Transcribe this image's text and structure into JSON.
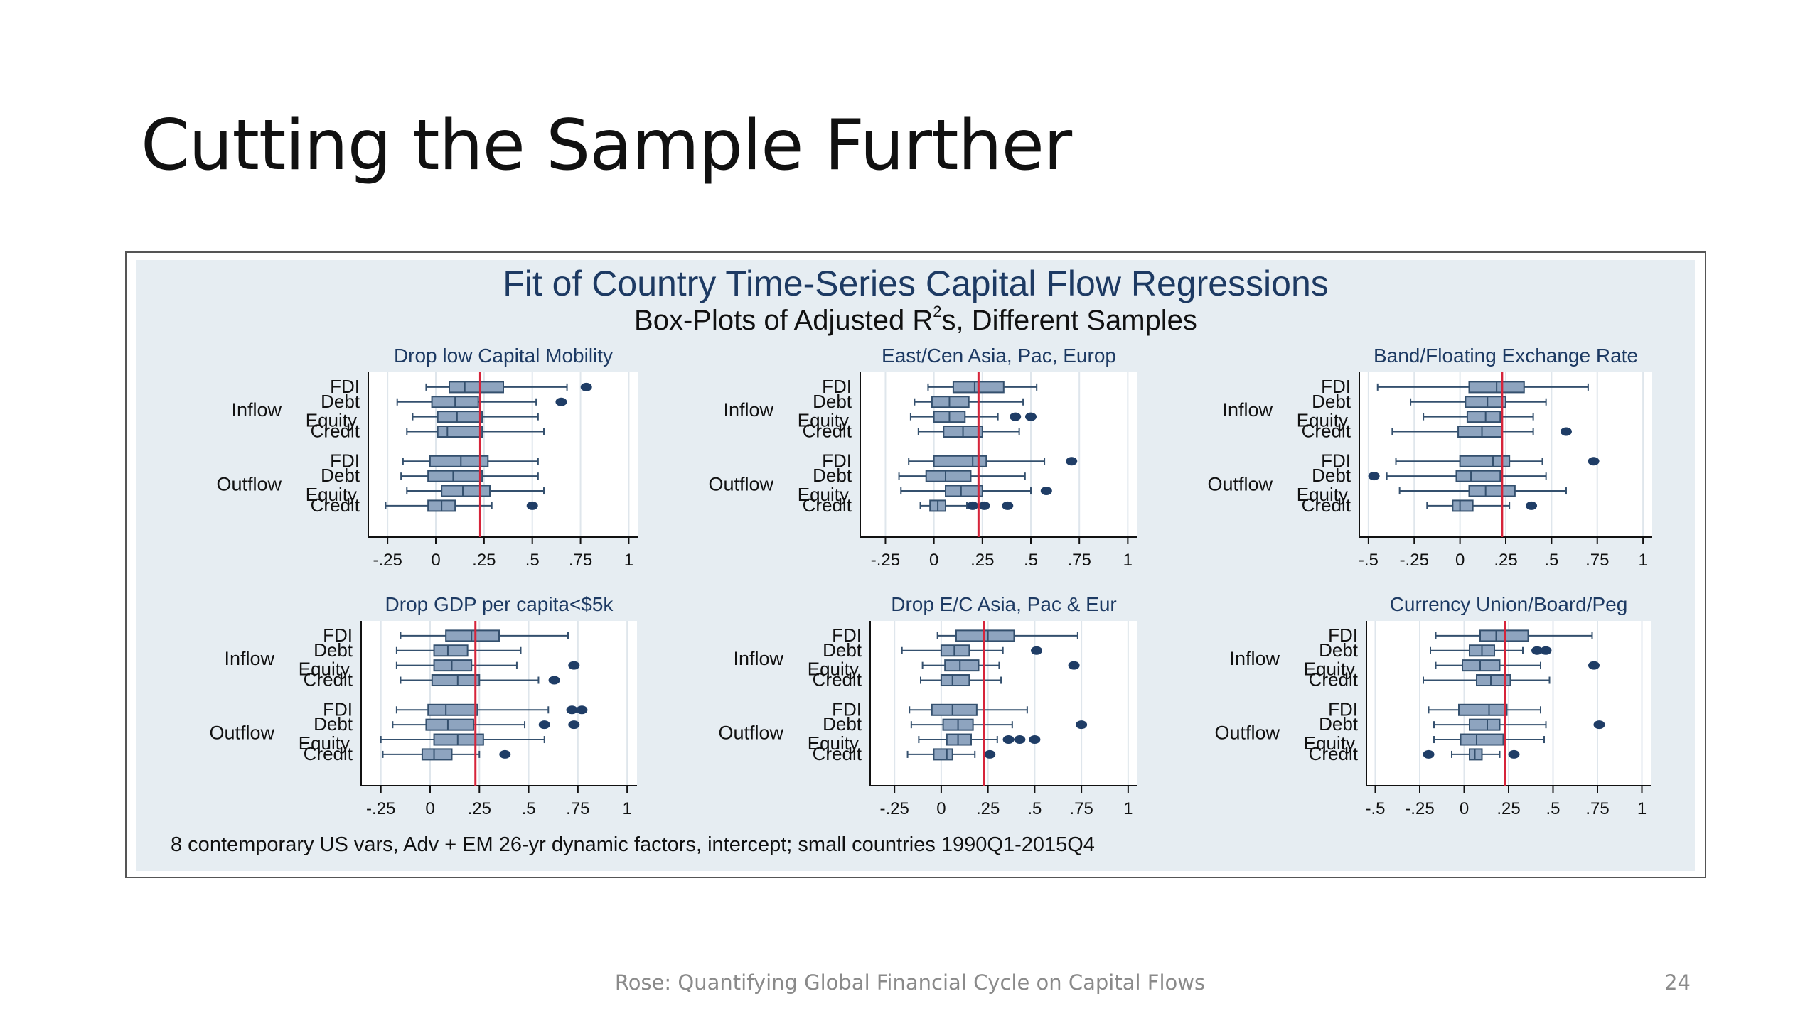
{
  "slide": {
    "title": "Cutting the Sample Further",
    "footer": "Rose: Quantifying Global Financial Cycle on Capital Flows",
    "page_number": "24"
  },
  "colors": {
    "box_fill": "#8ea4bf",
    "box_stroke": "#34506e",
    "outlier": "#1f3d66",
    "ref_line": "#d6243a",
    "panel_bg": "#e6edf2",
    "title_blue": "#1d3a63"
  },
  "chart_data": {
    "type": "boxplot",
    "title": "Fit of Country Time-Series Capital Flow Regressions",
    "subtitle_pre": "Box-Plots of Adjusted R",
    "subtitle_sup": "2",
    "subtitle_post": "s, Different Samples",
    "note": "8 contemporary US vars, Adv + EM 26-yr dynamic factors, intercept; small countries 1990Q1-2015Q4",
    "groups": [
      "Inflow",
      "Outflow"
    ],
    "categories": [
      "FDI",
      "Debt",
      "Equity",
      "Credit"
    ],
    "reference_line": 0.23,
    "panels": [
      {
        "title": "Drop low Capital Mobility",
        "xlim": [
          -0.35,
          1.05
        ],
        "ticks": [
          -0.25,
          0,
          0.25,
          0.5,
          0.75,
          1
        ],
        "tick_labels": [
          "-.25",
          "0",
          ".25",
          ".5",
          ".75",
          "1"
        ],
        "rows": [
          {
            "min": -0.05,
            "q1": 0.07,
            "med": 0.15,
            "q3": 0.35,
            "max": 0.68,
            "outliers": [
              0.78
            ]
          },
          {
            "min": -0.2,
            "q1": -0.02,
            "med": 0.1,
            "q3": 0.22,
            "max": 0.52,
            "outliers": [
              0.65
            ]
          },
          {
            "min": -0.12,
            "q1": 0.01,
            "med": 0.11,
            "q3": 0.24,
            "max": 0.53,
            "outliers": []
          },
          {
            "min": -0.15,
            "q1": 0.01,
            "med": 0.06,
            "q3": 0.24,
            "max": 0.56,
            "outliers": []
          },
          {
            "min": -0.17,
            "q1": -0.03,
            "med": 0.13,
            "q3": 0.27,
            "max": 0.53,
            "outliers": []
          },
          {
            "min": -0.18,
            "q1": -0.04,
            "med": 0.09,
            "q3": 0.24,
            "max": 0.53,
            "outliers": []
          },
          {
            "min": -0.15,
            "q1": 0.03,
            "med": 0.14,
            "q3": 0.28,
            "max": 0.56,
            "outliers": []
          },
          {
            "min": -0.26,
            "q1": -0.04,
            "med": 0.03,
            "q3": 0.1,
            "max": 0.29,
            "outliers": [
              0.5
            ]
          }
        ]
      },
      {
        "title": "East/Cen Asia, Pac, Europ",
        "xlim": [
          -0.38,
          1.05
        ],
        "ticks": [
          -0.25,
          0,
          0.25,
          0.5,
          0.75,
          1
        ],
        "tick_labels": [
          "-.25",
          "0",
          ".25",
          ".5",
          ".75",
          "1"
        ],
        "rows": [
          {
            "min": -0.03,
            "q1": 0.1,
            "med": 0.21,
            "q3": 0.36,
            "max": 0.53,
            "outliers": []
          },
          {
            "min": -0.1,
            "q1": -0.01,
            "med": 0.08,
            "q3": 0.18,
            "max": 0.46,
            "outliers": []
          },
          {
            "min": -0.12,
            "q1": 0.0,
            "med": 0.08,
            "q3": 0.16,
            "max": 0.33,
            "outliers": [
              0.42,
              0.5
            ]
          },
          {
            "min": -0.08,
            "q1": 0.05,
            "med": 0.15,
            "q3": 0.25,
            "max": 0.44,
            "outliers": []
          },
          {
            "min": -0.13,
            "q1": 0.0,
            "med": 0.2,
            "q3": 0.27,
            "max": 0.57,
            "outliers": [
              0.71
            ]
          },
          {
            "min": -0.18,
            "q1": -0.04,
            "med": 0.06,
            "q3": 0.19,
            "max": 0.47,
            "outliers": []
          },
          {
            "min": -0.17,
            "q1": 0.06,
            "med": 0.14,
            "q3": 0.25,
            "max": 0.5,
            "outliers": [
              0.58
            ]
          },
          {
            "min": -0.07,
            "q1": -0.02,
            "med": 0.02,
            "q3": 0.06,
            "max": 0.17,
            "outliers": [
              0.2,
              0.26,
              0.38
            ]
          }
        ]
      },
      {
        "title": "Band/Floating Exchange Rate",
        "xlim": [
          -0.55,
          1.05
        ],
        "ticks": [
          -0.5,
          -0.25,
          0,
          0.25,
          0.5,
          0.75,
          1
        ],
        "tick_labels": [
          "-.5",
          "-.25",
          "0",
          ".25",
          ".5",
          ".75",
          "1"
        ],
        "rows": [
          {
            "min": -0.45,
            "q1": 0.05,
            "med": 0.2,
            "q3": 0.35,
            "max": 0.7,
            "outliers": []
          },
          {
            "min": -0.27,
            "q1": 0.03,
            "med": 0.15,
            "q3": 0.25,
            "max": 0.47,
            "outliers": []
          },
          {
            "min": -0.2,
            "q1": 0.04,
            "med": 0.14,
            "q3": 0.22,
            "max": 0.4,
            "outliers": []
          },
          {
            "min": -0.37,
            "q1": -0.01,
            "med": 0.12,
            "q3": 0.23,
            "max": 0.4,
            "outliers": [
              0.58
            ]
          },
          {
            "min": -0.35,
            "q1": 0.0,
            "med": 0.18,
            "q3": 0.27,
            "max": 0.45,
            "outliers": [
              0.73
            ]
          },
          {
            "min": -0.4,
            "q1": -0.02,
            "med": 0.06,
            "q3": 0.22,
            "max": 0.47,
            "outliers": [
              -0.47
            ]
          },
          {
            "min": -0.33,
            "q1": 0.05,
            "med": 0.14,
            "q3": 0.3,
            "max": 0.58,
            "outliers": []
          },
          {
            "min": -0.18,
            "q1": -0.04,
            "med": 0.0,
            "q3": 0.07,
            "max": 0.27,
            "outliers": [
              0.39
            ]
          }
        ]
      },
      {
        "title": "Drop GDP per capita<$5k",
        "xlim": [
          -0.35,
          1.05
        ],
        "ticks": [
          -0.25,
          0,
          0.25,
          0.5,
          0.75,
          1
        ],
        "tick_labels": [
          "-.25",
          "0",
          ".25",
          ".5",
          ".75",
          "1"
        ],
        "rows": [
          {
            "min": -0.15,
            "q1": 0.08,
            "med": 0.21,
            "q3": 0.35,
            "max": 0.7,
            "outliers": []
          },
          {
            "min": -0.17,
            "q1": 0.02,
            "med": 0.09,
            "q3": 0.19,
            "max": 0.46,
            "outliers": []
          },
          {
            "min": -0.17,
            "q1": 0.02,
            "med": 0.11,
            "q3": 0.21,
            "max": 0.44,
            "outliers": [
              0.73
            ]
          },
          {
            "min": -0.15,
            "q1": 0.01,
            "med": 0.14,
            "q3": 0.25,
            "max": 0.55,
            "outliers": [
              0.63
            ]
          },
          {
            "min": -0.17,
            "q1": -0.01,
            "med": 0.08,
            "q3": 0.24,
            "max": 0.6,
            "outliers": [
              0.72,
              0.77
            ]
          },
          {
            "min": -0.19,
            "q1": -0.02,
            "med": 0.09,
            "q3": 0.22,
            "max": 0.48,
            "outliers": [
              0.58,
              0.73
            ]
          },
          {
            "min": -0.25,
            "q1": 0.02,
            "med": 0.14,
            "q3": 0.27,
            "max": 0.58,
            "outliers": []
          },
          {
            "min": -0.24,
            "q1": -0.04,
            "med": 0.02,
            "q3": 0.11,
            "max": 0.25,
            "outliers": [
              0.38
            ]
          }
        ]
      },
      {
        "title": "Drop E/C Asia, Pac & Eur",
        "xlim": [
          -0.38,
          1.05
        ],
        "ticks": [
          -0.25,
          0,
          0.25,
          0.5,
          0.75,
          1
        ],
        "tick_labels": [
          "-.25",
          "0",
          ".25",
          ".5",
          ".75",
          "1"
        ],
        "rows": [
          {
            "min": -0.02,
            "q1": 0.08,
            "med": 0.25,
            "q3": 0.39,
            "max": 0.73,
            "outliers": []
          },
          {
            "min": -0.21,
            "q1": 0.0,
            "med": 0.07,
            "q3": 0.15,
            "max": 0.33,
            "outliers": [
              0.51
            ]
          },
          {
            "min": -0.1,
            "q1": 0.02,
            "med": 0.1,
            "q3": 0.2,
            "max": 0.31,
            "outliers": [
              0.71
            ]
          },
          {
            "min": -0.11,
            "q1": 0.0,
            "med": 0.06,
            "q3": 0.15,
            "max": 0.32,
            "outliers": []
          },
          {
            "min": -0.17,
            "q1": -0.05,
            "med": 0.06,
            "q3": 0.19,
            "max": 0.46,
            "outliers": []
          },
          {
            "min": -0.16,
            "q1": 0.01,
            "med": 0.09,
            "q3": 0.17,
            "max": 0.38,
            "outliers": [
              0.75
            ]
          },
          {
            "min": -0.12,
            "q1": 0.03,
            "med": 0.09,
            "q3": 0.16,
            "max": 0.3,
            "outliers": [
              0.36,
              0.42,
              0.5
            ]
          },
          {
            "min": -0.18,
            "q1": -0.04,
            "med": 0.03,
            "q3": 0.06,
            "max": 0.18,
            "outliers": [
              0.26
            ]
          }
        ]
      },
      {
        "title": "Currency Union/Board/Peg",
        "xlim": [
          -0.55,
          1.05
        ],
        "ticks": [
          -0.5,
          -0.25,
          0,
          0.25,
          0.5,
          0.75,
          1
        ],
        "tick_labels": [
          "-.5",
          "-.25",
          "0",
          ".25",
          ".5",
          ".75",
          "1"
        ],
        "rows": [
          {
            "min": -0.16,
            "q1": 0.09,
            "med": 0.18,
            "q3": 0.36,
            "max": 0.72,
            "outliers": []
          },
          {
            "min": -0.19,
            "q1": 0.03,
            "med": 0.1,
            "q3": 0.17,
            "max": 0.33,
            "outliers": [
              0.41,
              0.46
            ]
          },
          {
            "min": -0.16,
            "q1": -0.01,
            "med": 0.09,
            "q3": 0.2,
            "max": 0.43,
            "outliers": [
              0.73
            ]
          },
          {
            "min": -0.23,
            "q1": 0.07,
            "med": 0.15,
            "q3": 0.26,
            "max": 0.48,
            "outliers": []
          },
          {
            "min": -0.2,
            "q1": -0.03,
            "med": 0.14,
            "q3": 0.24,
            "max": 0.43,
            "outliers": []
          },
          {
            "min": -0.17,
            "q1": 0.03,
            "med": 0.13,
            "q3": 0.2,
            "max": 0.46,
            "outliers": [
              0.76
            ]
          },
          {
            "min": -0.17,
            "q1": -0.02,
            "med": 0.07,
            "q3": 0.22,
            "max": 0.45,
            "outliers": []
          },
          {
            "min": -0.07,
            "q1": 0.03,
            "med": 0.06,
            "q3": 0.1,
            "max": 0.2,
            "outliers": [
              -0.2,
              0.28
            ]
          }
        ]
      }
    ]
  }
}
